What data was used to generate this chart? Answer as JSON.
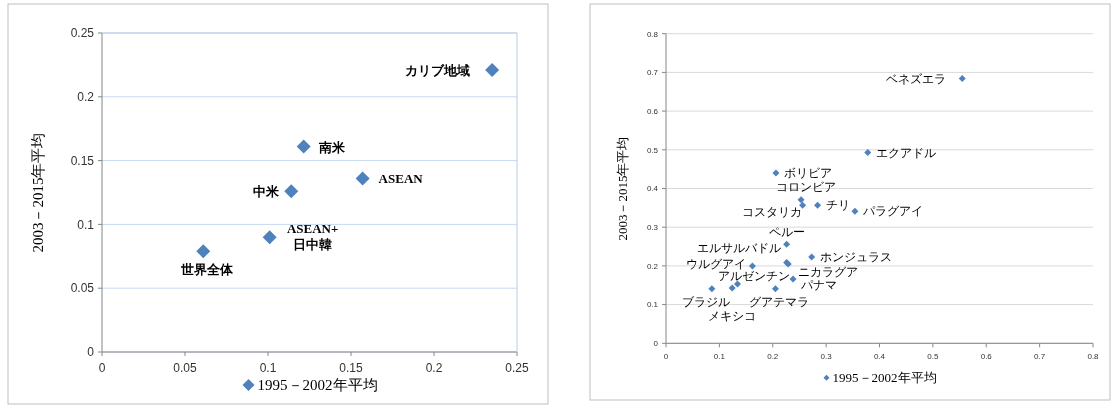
{
  "chart_data": [
    {
      "type": "scatter",
      "ylabel": "2003－2015年平均",
      "xlim": [
        0,
        0.25
      ],
      "ylim": [
        0,
        0.25
      ],
      "xticks": [
        0,
        0.05,
        0.1,
        0.15,
        0.2,
        0.25
      ],
      "yticks": [
        0,
        0.05,
        0.1,
        0.15,
        0.2,
        0.25
      ],
      "grid": "y",
      "legend": "bottom",
      "marker": "diamond",
      "series": [
        {
          "name": "1995－2002年平均",
          "color": "#4f81bd",
          "x": [
            0.235,
            0.1215,
            0.157,
            0.114,
            0.101,
            0.061
          ],
          "values": [
            0.221,
            0.161,
            0.136,
            0.126,
            0.09,
            0.079
          ]
        }
      ],
      "annotations": [
        {
          "text": "カリブ地域",
          "x": 0.235,
          "y": 0.221
        },
        {
          "text": "南米",
          "x": 0.1215,
          "y": 0.161
        },
        {
          "text": "ASEAN",
          "x": 0.157,
          "y": 0.136
        },
        {
          "text": "中米",
          "x": 0.114,
          "y": 0.126
        },
        {
          "text": "ASEAN+\n日中韓",
          "x": 0.101,
          "y": 0.09
        },
        {
          "text": "世界全体",
          "x": 0.061,
          "y": 0.079
        }
      ]
    },
    {
      "type": "scatter",
      "ylabel": "2003－2015年平均",
      "xlim": [
        0,
        0.8
      ],
      "ylim": [
        0,
        0.8
      ],
      "xticks": [
        0,
        0.1,
        0.2,
        0.3,
        0.4,
        0.5,
        0.6,
        0.7,
        0.8
      ],
      "yticks": [
        0,
        0.1,
        0.2,
        0.3,
        0.4,
        0.5,
        0.6,
        0.7,
        0.8
      ],
      "grid": "y",
      "legend": "bottom",
      "marker": "diamond",
      "series": [
        {
          "name": "1995－2002年平均",
          "color": "#4f81bd",
          "x": [
            0.555,
            0.378,
            0.206,
            0.253,
            0.256,
            0.284,
            0.354,
            0.226,
            0.226,
            0.273,
            0.229,
            0.162,
            0.134,
            0.124,
            0.086,
            0.205,
            0.238
          ],
          "values": [
            0.684,
            0.493,
            0.44,
            0.371,
            0.357,
            0.357,
            0.341,
            0.256,
            0.209,
            0.223,
            0.205,
            0.2,
            0.153,
            0.143,
            0.141,
            0.141,
            0.166
          ]
        }
      ],
      "annotations": [
        {
          "text": "ベネズエラ",
          "x": 0.555,
          "y": 0.684
        },
        {
          "text": "エクアドル",
          "x": 0.378,
          "y": 0.493
        },
        {
          "text": "ボリビア",
          "x": 0.206,
          "y": 0.44
        },
        {
          "text": "コロンビア",
          "x": 0.253,
          "y": 0.371
        },
        {
          "text": "コスタリカ",
          "x": 0.256,
          "y": 0.357
        },
        {
          "text": "チリ",
          "x": 0.284,
          "y": 0.357
        },
        {
          "text": "パラグアイ",
          "x": 0.354,
          "y": 0.341
        },
        {
          "text": "ペルー",
          "x": 0.226,
          "y": 0.256
        },
        {
          "text": "エルサルバドル",
          "x": 0.226,
          "y": 0.209
        },
        {
          "text": "ホンジュラス",
          "x": 0.273,
          "y": 0.223
        },
        {
          "text": "ニカラグア",
          "x": 0.229,
          "y": 0.205
        },
        {
          "text": "ウルグアイ",
          "x": 0.162,
          "y": 0.2
        },
        {
          "text": "アルゼンチン",
          "x": 0.134,
          "y": 0.153
        },
        {
          "text": "メキシコ",
          "x": 0.124,
          "y": 0.143
        },
        {
          "text": "ブラジル",
          "x": 0.086,
          "y": 0.141
        },
        {
          "text": "グアテマラ",
          "x": 0.205,
          "y": 0.141
        },
        {
          "text": "パナマ",
          "x": 0.238,
          "y": 0.166
        }
      ]
    }
  ]
}
